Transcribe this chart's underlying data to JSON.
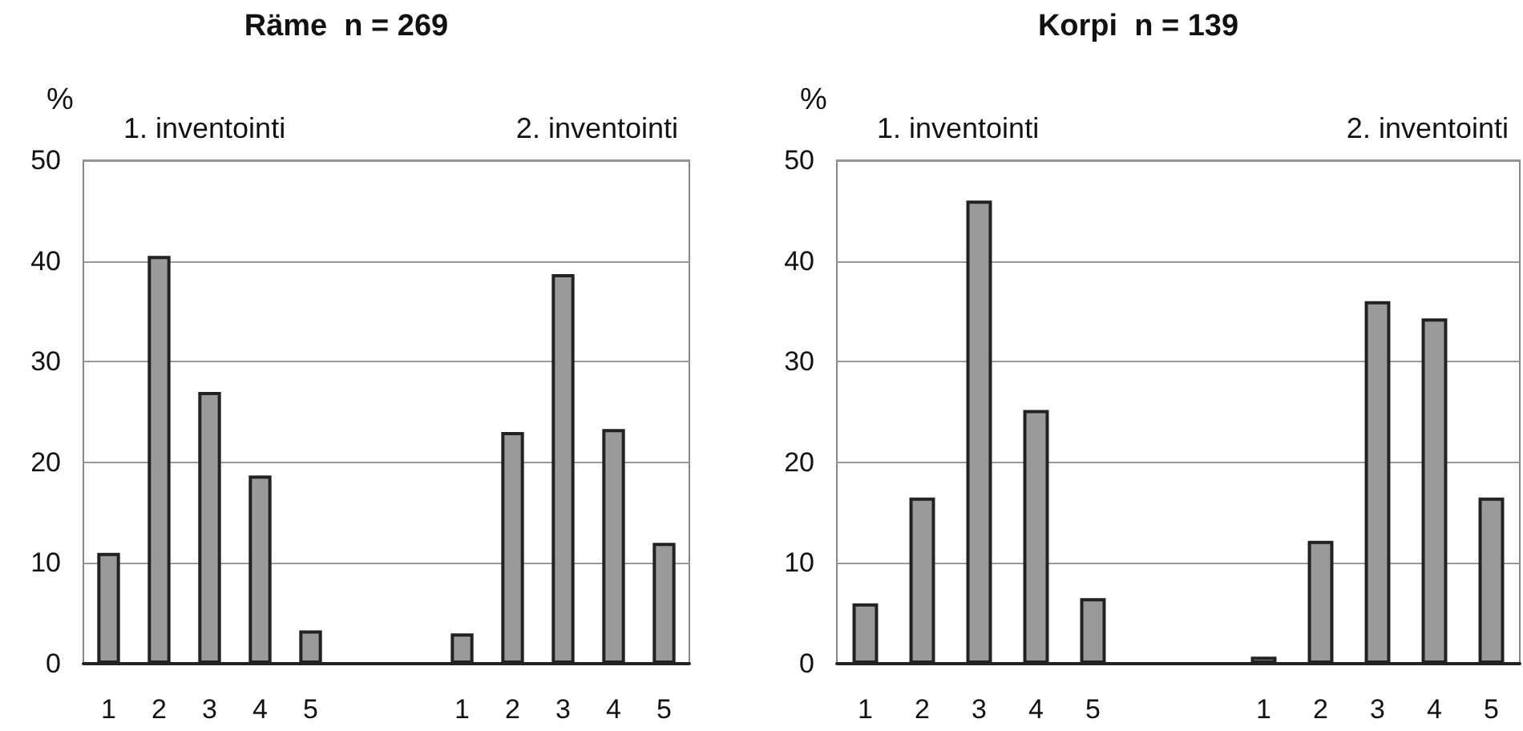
{
  "chart_data": [
    {
      "type": "bar",
      "title": "Räme  n = 269",
      "ylabel": "%",
      "annotations": [
        "1. inventointi",
        "2. inventointi"
      ],
      "categories": [
        "1",
        "2",
        "3",
        "4",
        "5",
        null,
        null,
        "1",
        "2",
        "3",
        "4",
        "5"
      ],
      "values": [
        11,
        40.5,
        27,
        18.7,
        3.3,
        null,
        null,
        3,
        23,
        38.7,
        23.3,
        12
      ],
      "color": "#9a9a9a",
      "ylim": [
        0,
        50
      ],
      "yticks": [
        0,
        10,
        20,
        30,
        40,
        50
      ],
      "grid": "y"
    },
    {
      "type": "bar",
      "title": "Korpi  n = 139",
      "ylabel": "%",
      "annotations": [
        "1. inventointi",
        "2. inventointi"
      ],
      "categories": [
        "1",
        "2",
        "3",
        "4",
        "5",
        null,
        null,
        "1",
        "2",
        "3",
        "4",
        "5"
      ],
      "values": [
        6,
        16.5,
        46,
        25.2,
        6.5,
        null,
        null,
        0.7,
        12.2,
        36,
        34.3,
        16.5
      ],
      "color": "#9a9a9a",
      "ylim": [
        0,
        50
      ],
      "yticks": [
        0,
        10,
        20,
        30,
        40,
        50
      ],
      "grid": "y"
    }
  ]
}
